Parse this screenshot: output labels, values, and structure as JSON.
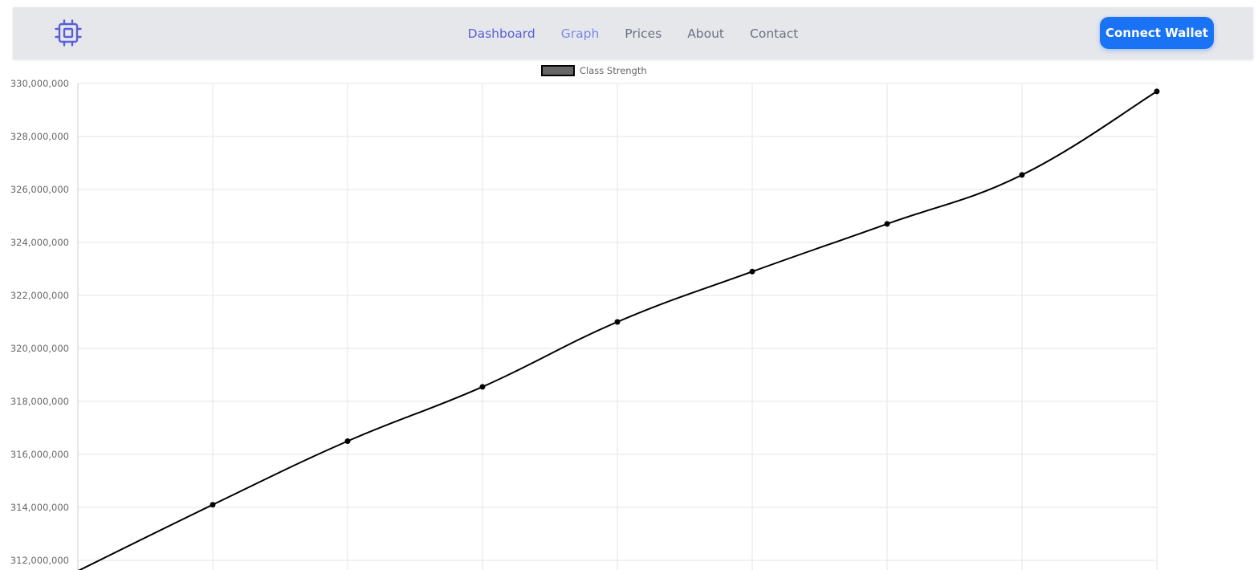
{
  "navbar": {
    "logo_icon": "cpu-chip-icon",
    "links": [
      {
        "label": "Dashboard",
        "state": "active"
      },
      {
        "label": "Graph",
        "state": "current"
      },
      {
        "label": "Prices",
        "state": "normal"
      },
      {
        "label": "About",
        "state": "normal"
      },
      {
        "label": "Contact",
        "state": "normal"
      }
    ],
    "connect_button": "Connect Wallet"
  },
  "colors": {
    "accent": "#5b5ed6",
    "button": "#1a73f5",
    "navbar_bg": "#e5e7eb",
    "series_line": "#000000",
    "legend_fill": "#666666"
  },
  "chart_data": {
    "type": "line",
    "title": "",
    "xlabel": "",
    "ylabel": "",
    "ylim": [
      312000000,
      330000000
    ],
    "y_ticks": [
      "330,000,000",
      "328,000,000",
      "326,000,000",
      "324,000,000",
      "322,000,000",
      "320,000,000",
      "318,000,000",
      "316,000,000",
      "314,000,000",
      "312,000,000"
    ],
    "grid": true,
    "legend": "top-center",
    "series": [
      {
        "name": "Class Strength",
        "color": "#000000",
        "values": [
          311600000,
          314100000,
          316500000,
          318550000,
          321000000,
          322900000,
          324700000,
          326550000,
          329700000
        ]
      }
    ]
  }
}
